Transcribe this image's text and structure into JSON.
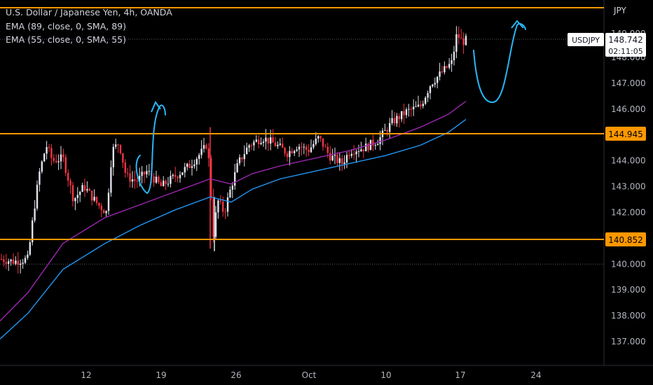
{
  "header": {
    "title": "U.S. Dollar / Japanese Yen, 4h, OANDA",
    "indicators": [
      "EMA (89, close, 0, SMA, 89)",
      "EMA (55, close, 0, SMA, 55)"
    ]
  },
  "price_axis": {
    "currency": "JPY",
    "ticks": [
      "148.000",
      "147.000",
      "146.000",
      "144.000",
      "143.000",
      "142.000",
      "140.000",
      "139.000",
      "138.000",
      "137.000"
    ],
    "top_tick": "149.000"
  },
  "time_axis": {
    "ticks": [
      "12",
      "19",
      "26",
      "Oct",
      "10",
      "17",
      "24"
    ]
  },
  "symbol_badge": {
    "symbol": "USDJPY",
    "price": "148.742",
    "countdown": "02:11:05"
  },
  "levels": [
    {
      "label": "144.945",
      "color": "#ff9800"
    },
    {
      "label": "140.852",
      "color": "#ff9800"
    }
  ],
  "colors": {
    "background": "#000000",
    "up": "#e0e3eb",
    "down": "#f23645",
    "level": "#ff9800",
    "ema89": "#9c27b0",
    "ema55": "#2196f3",
    "drawing": "#29b6f6"
  },
  "chart_data": {
    "type": "candlestick",
    "symbol": "USDJPY",
    "timeframe": "4h",
    "ylim": [
      136.4,
      149.6
    ],
    "x_ticks": [
      "12",
      "19",
      "26",
      "Oct",
      "10",
      "17",
      "24"
    ],
    "y_ticks": [
      137,
      138,
      139,
      140,
      142,
      143,
      144,
      146,
      147,
      148
    ],
    "horizontal_levels": [
      149.5,
      144.945,
      140.852
    ],
    "ema89": [
      [
        0,
        137.8
      ],
      [
        40,
        138.9
      ],
      [
        90,
        140.8
      ],
      [
        150,
        141.8
      ],
      [
        200,
        142.3
      ],
      [
        250,
        142.8
      ],
      [
        300,
        143.3
      ],
      [
        330,
        143.1
      ],
      [
        360,
        143.5
      ],
      [
        400,
        143.8
      ],
      [
        450,
        144.1
      ],
      [
        500,
        144.4
      ],
      [
        550,
        144.8
      ],
      [
        600,
        145.3
      ],
      [
        640,
        145.8
      ],
      [
        665,
        146.3
      ]
    ],
    "ema55": [
      [
        0,
        137.1
      ],
      [
        40,
        138.1
      ],
      [
        90,
        139.8
      ],
      [
        150,
        140.8
      ],
      [
        200,
        141.5
      ],
      [
        250,
        142.1
      ],
      [
        300,
        142.6
      ],
      [
        330,
        142.4
      ],
      [
        360,
        142.9
      ],
      [
        400,
        143.3
      ],
      [
        450,
        143.6
      ],
      [
        500,
        143.9
      ],
      [
        550,
        144.2
      ],
      [
        600,
        144.6
      ],
      [
        640,
        145.1
      ],
      [
        665,
        145.6
      ]
    ],
    "price_path": [
      [
        0,
        140.2
      ],
      [
        20,
        140.1
      ],
      [
        40,
        140.2
      ],
      [
        48,
        142.0
      ],
      [
        56,
        143.5
      ],
      [
        66,
        144.6
      ],
      [
        75,
        144.0
      ],
      [
        90,
        144.1
      ],
      [
        105,
        142.5
      ],
      [
        120,
        143.0
      ],
      [
        140,
        142.3
      ],
      [
        152,
        142.0
      ],
      [
        160,
        144.4
      ],
      [
        170,
        144.7
      ],
      [
        180,
        143.4
      ],
      [
        195,
        143.2
      ],
      [
        210,
        143.6
      ],
      [
        230,
        143.0
      ],
      [
        250,
        143.4
      ],
      [
        270,
        143.8
      ],
      [
        290,
        144.4
      ],
      [
        296,
        144.7
      ],
      [
        300,
        143.2
      ],
      [
        305,
        141.0
      ],
      [
        310,
        142.5
      ],
      [
        320,
        142.0
      ],
      [
        330,
        143.0
      ],
      [
        340,
        143.9
      ],
      [
        355,
        144.6
      ],
      [
        375,
        144.9
      ],
      [
        395,
        144.6
      ],
      [
        410,
        144.3
      ],
      [
        425,
        144.6
      ],
      [
        440,
        144.4
      ],
      [
        455,
        144.9
      ],
      [
        470,
        144.2
      ],
      [
        488,
        143.9
      ],
      [
        500,
        144.4
      ],
      [
        520,
        144.5
      ],
      [
        540,
        144.8
      ],
      [
        560,
        145.5
      ],
      [
        580,
        145.9
      ],
      [
        600,
        146.1
      ],
      [
        615,
        147.0
      ],
      [
        630,
        147.4
      ],
      [
        645,
        147.8
      ],
      [
        652,
        148.9
      ],
      [
        660,
        148.6
      ],
      [
        668,
        148.7
      ]
    ],
    "last_price": 148.742
  }
}
